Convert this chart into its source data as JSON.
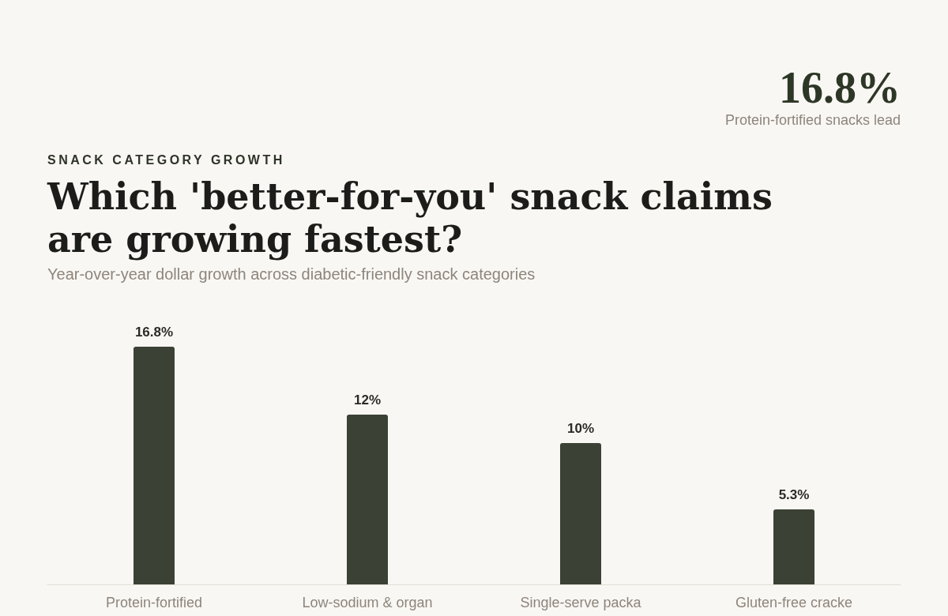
{
  "chart_data": {
    "type": "bar",
    "title": "Which 'better-for-you' snack claims are growing fastest?",
    "subtitle": "Year-over-year dollar growth across diabetic-friendly snack categories",
    "annotations": [
      "SNACK CATEGORY GROWTH",
      "16.8%",
      "Protein-fortified snacks lead"
    ],
    "categories": [
      "Protein-fortified",
      "Low-sodium & organ",
      "Single-serve packa",
      "Gluten-free cracke"
    ],
    "values": [
      16.8,
      12,
      10,
      5.3
    ],
    "value_labels": [
      "16.8%",
      "12%",
      "10%",
      "5.3%"
    ],
    "color": "#3b4134"
  }
}
